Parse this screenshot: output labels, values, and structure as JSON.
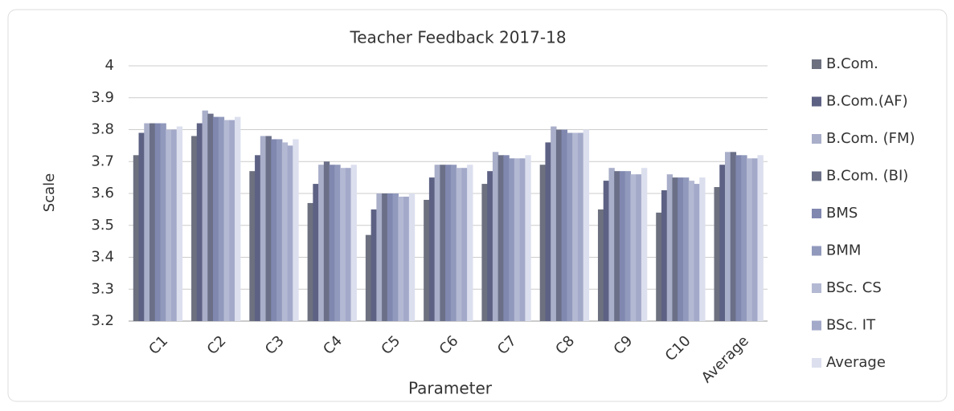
{
  "chart_data": {
    "type": "bar",
    "title": "Teacher Feedback 2017-18",
    "x_label": "Parameter",
    "y_label": "Scale",
    "categories": [
      "C1",
      "C2",
      "C3",
      "C4",
      "C5",
      "C6",
      "C7",
      "C8",
      "C9",
      "C10",
      "Average"
    ],
    "series": [
      {
        "name": "B.Com.",
        "color": "#6c707f",
        "values": [
          3.72,
          3.78,
          3.67,
          3.57,
          3.47,
          3.58,
          3.63,
          3.69,
          3.55,
          3.54,
          3.62
        ]
      },
      {
        "name": "B.Com.(AF)",
        "color": "#5d6284",
        "values": [
          3.79,
          3.82,
          3.72,
          3.63,
          3.55,
          3.65,
          3.67,
          3.76,
          3.64,
          3.61,
          3.69
        ]
      },
      {
        "name": "B.Com. (FM)",
        "color": "#a9aec9",
        "values": [
          3.82,
          3.86,
          3.78,
          3.69,
          3.6,
          3.69,
          3.73,
          3.81,
          3.68,
          3.66,
          3.73
        ]
      },
      {
        "name": "B.Com. (BI)",
        "color": "#6b7088",
        "values": [
          3.82,
          3.85,
          3.78,
          3.7,
          3.6,
          3.69,
          3.72,
          3.8,
          3.67,
          3.65,
          3.73
        ]
      },
      {
        "name": "BMS",
        "color": "#8088b0",
        "values": [
          3.82,
          3.84,
          3.77,
          3.69,
          3.6,
          3.69,
          3.72,
          3.8,
          3.67,
          3.65,
          3.72
        ]
      },
      {
        "name": "BMM",
        "color": "#9199bc",
        "values": [
          3.82,
          3.84,
          3.77,
          3.69,
          3.6,
          3.69,
          3.71,
          3.79,
          3.67,
          3.65,
          3.72
        ]
      },
      {
        "name": "BSc. CS",
        "color": "#b4b9d3",
        "values": [
          3.8,
          3.83,
          3.76,
          3.68,
          3.59,
          3.68,
          3.71,
          3.79,
          3.66,
          3.64,
          3.71
        ]
      },
      {
        "name": "BSc. IT",
        "color": "#a3a9c9",
        "values": [
          3.8,
          3.83,
          3.75,
          3.68,
          3.59,
          3.68,
          3.71,
          3.79,
          3.66,
          3.63,
          3.71
        ]
      },
      {
        "name": "Average",
        "color": "#dcdfee",
        "values": [
          3.81,
          3.84,
          3.77,
          3.69,
          3.6,
          3.69,
          3.72,
          3.8,
          3.68,
          3.65,
          3.72
        ]
      }
    ],
    "ylim": [
      3.2,
      4
    ],
    "yticks": [
      3.2,
      3.3,
      3.4,
      3.5,
      3.6,
      3.7,
      3.8,
      3.9,
      4
    ],
    "grid": true,
    "legend": "right"
  }
}
